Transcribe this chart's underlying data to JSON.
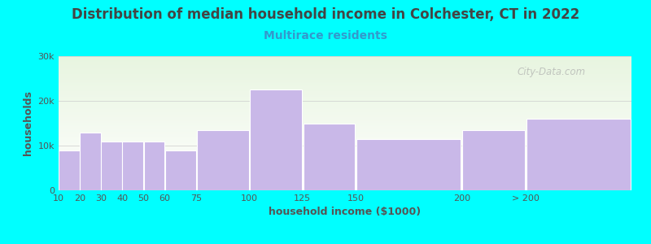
{
  "title": "Distribution of median household income in Colchester, CT in 2022",
  "subtitle": "Multirace residents",
  "xlabel": "household income ($1000)",
  "ylabel": "households",
  "background_outer": "#00FFFF",
  "background_inner_top": "#e8f5e0",
  "background_inner_bottom": "#ffffff",
  "bar_color": "#c9b8e8",
  "bar_edge_color": "#ffffff",
  "bin_lefts": [
    10,
    20,
    30,
    40,
    50,
    60,
    75,
    100,
    125,
    150,
    200,
    230
  ],
  "bin_rights": [
    20,
    30,
    40,
    50,
    60,
    75,
    100,
    125,
    150,
    200,
    230,
    280
  ],
  "values": [
    9000,
    13000,
    11000,
    11000,
    11000,
    9000,
    13500,
    22500,
    15000,
    11500,
    13500,
    16000
  ],
  "tick_positions": [
    10,
    20,
    30,
    40,
    50,
    60,
    75,
    100,
    125,
    150,
    200,
    230
  ],
  "tick_labels": [
    "10",
    "20",
    "30",
    "40",
    "50",
    "60",
    "75",
    "100",
    "125",
    "150",
    "200",
    "> 200"
  ],
  "ylim": [
    0,
    30000
  ],
  "yticks": [
    0,
    10000,
    20000,
    30000
  ],
  "ytick_labels": [
    "0",
    "10k",
    "20k",
    "30k"
  ],
  "xlim": [
    10,
    280
  ],
  "title_fontsize": 12,
  "subtitle_fontsize": 10,
  "axis_label_fontsize": 9,
  "tick_fontsize": 8,
  "title_color": "#444444",
  "subtitle_color": "#3399cc",
  "axis_label_color": "#555555",
  "tick_color": "#555555",
  "watermark_text": "City-Data.com"
}
